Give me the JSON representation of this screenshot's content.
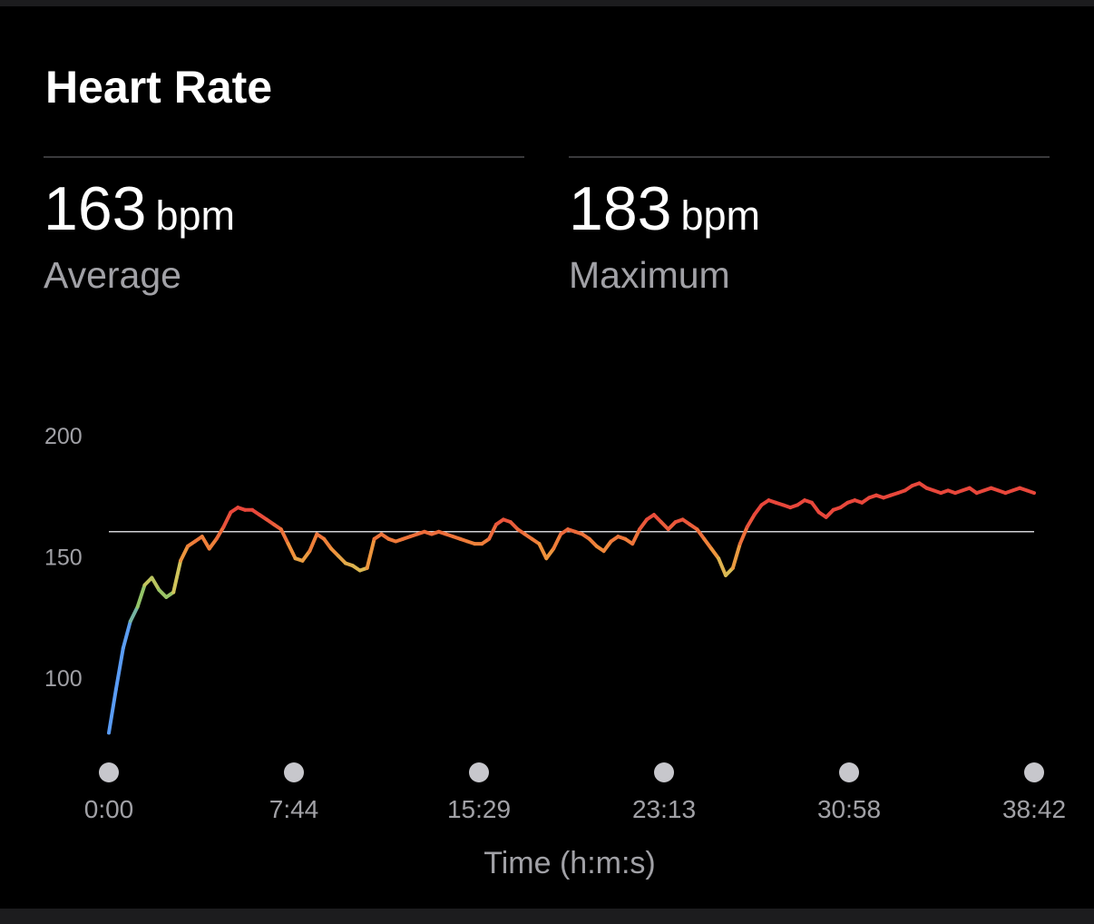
{
  "title": "Heart Rate",
  "stats": [
    {
      "value": "163",
      "unit": "bpm",
      "label": "Average"
    },
    {
      "value": "183",
      "unit": "bpm",
      "label": "Maximum"
    }
  ],
  "chart_data": {
    "type": "line",
    "title": "Heart Rate",
    "xlabel": "Time (h:m:s)",
    "ylabel": "",
    "x_ticks": [
      "0:00",
      "7:44",
      "15:29",
      "23:13",
      "30:58",
      "38:42"
    ],
    "x_range_minutes": [
      0,
      38.7
    ],
    "y_ticks": [
      100,
      150,
      200
    ],
    "ylim": [
      80,
      200
    ],
    "reference_line": {
      "label": "Average",
      "value": 163
    },
    "grid": false,
    "color_scale": {
      "low": "#5a9cf5",
      "mid_low": "#88c46a",
      "mid": "#d4c45a",
      "mid_high": "#f0903a",
      "high": "#e8473b"
    },
    "series": [
      {
        "x_minutes": [
          0,
          0.3,
          0.6,
          0.9,
          1.2,
          1.5,
          1.8,
          2.1,
          2.4,
          2.7,
          3.0,
          3.3,
          3.6,
          3.9,
          4.2,
          4.5,
          4.8,
          5.1,
          5.4,
          5.7,
          6.0,
          6.3,
          6.6,
          6.9,
          7.2,
          7.5,
          7.8,
          8.1,
          8.4,
          8.7,
          9.0,
          9.3,
          9.6,
          9.9,
          10.2,
          10.5,
          10.8,
          11.1,
          11.4,
          11.7,
          12.0,
          12.3,
          12.6,
          12.9,
          13.2,
          13.5,
          13.8,
          14.1,
          14.4,
          14.7,
          15.0,
          15.3,
          15.6,
          15.9,
          16.2,
          16.5,
          16.8,
          17.1,
          17.4,
          17.7,
          18.0,
          18.3,
          18.6,
          18.9,
          19.2,
          19.5,
          19.8,
          20.1,
          20.4,
          20.7,
          21.0,
          21.3,
          21.6,
          21.9,
          22.2,
          22.5,
          22.8,
          23.1,
          23.4,
          23.7,
          24.0,
          24.3,
          24.6,
          24.9,
          25.2,
          25.5,
          25.8,
          26.1,
          26.4,
          26.7,
          27.0,
          27.3,
          27.6,
          27.9,
          28.2,
          28.5,
          28.8,
          29.1,
          29.4,
          29.7,
          30.0,
          30.3,
          30.6,
          30.9,
          31.2,
          31.5,
          31.8,
          32.1,
          32.4,
          32.7,
          33.0,
          33.3,
          33.6,
          33.9,
          34.2,
          34.5,
          34.8,
          35.1,
          35.4,
          35.7,
          36.0,
          36.3,
          36.6,
          36.9,
          37.2,
          37.5,
          37.8,
          38.1,
          38.4,
          38.7
        ],
        "bpm": [
          80,
          98,
          115,
          126,
          132,
          141,
          144,
          139,
          136,
          138,
          151,
          157,
          159,
          161,
          156,
          160,
          165,
          171,
          173,
          172,
          172,
          170,
          168,
          166,
          164,
          158,
          152,
          151,
          155,
          162,
          160,
          156,
          153,
          150,
          149,
          147,
          148,
          160,
          162,
          160,
          159,
          160,
          161,
          162,
          163,
          162,
          163,
          162,
          161,
          160,
          159,
          158,
          158,
          160,
          166,
          168,
          167,
          164,
          162,
          160,
          158,
          152,
          156,
          162,
          164,
          163,
          162,
          160,
          157,
          155,
          159,
          161,
          160,
          158,
          164,
          168,
          170,
          167,
          164,
          167,
          168,
          166,
          164,
          160,
          156,
          152,
          145,
          148,
          158,
          165,
          170,
          174,
          176,
          175,
          174,
          173,
          174,
          176,
          175,
          171,
          169,
          172,
          173,
          175,
          176,
          175,
          177,
          178,
          177,
          178,
          179,
          180,
          182,
          183,
          181,
          180,
          179,
          180,
          179,
          180,
          181,
          179,
          180,
          181,
          180,
          179,
          180,
          181,
          180,
          179
        ]
      }
    ]
  }
}
